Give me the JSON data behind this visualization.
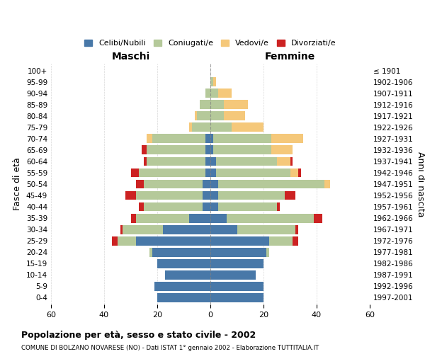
{
  "age_groups": [
    "100+",
    "95-99",
    "90-94",
    "85-89",
    "80-84",
    "75-79",
    "70-74",
    "65-69",
    "60-64",
    "55-59",
    "50-54",
    "45-49",
    "40-44",
    "35-39",
    "30-34",
    "25-29",
    "20-24",
    "15-19",
    "10-14",
    "5-9",
    "0-4"
  ],
  "birth_years": [
    "≤ 1901",
    "1902-1906",
    "1907-1911",
    "1912-1916",
    "1917-1921",
    "1922-1926",
    "1927-1931",
    "1932-1936",
    "1937-1941",
    "1942-1946",
    "1947-1951",
    "1952-1956",
    "1957-1961",
    "1962-1966",
    "1967-1971",
    "1972-1976",
    "1977-1981",
    "1982-1986",
    "1987-1991",
    "1992-1996",
    "1997-2001"
  ],
  "maschi": {
    "celibi": [
      0,
      0,
      0,
      0,
      0,
      0,
      2,
      2,
      2,
      2,
      3,
      3,
      3,
      8,
      18,
      28,
      22,
      20,
      17,
      21,
      20
    ],
    "coniugati": [
      0,
      0,
      2,
      4,
      5,
      7,
      20,
      22,
      22,
      25,
      22,
      25,
      22,
      20,
      15,
      7,
      1,
      0,
      0,
      0,
      0
    ],
    "vedovi": [
      0,
      0,
      0,
      0,
      1,
      1,
      2,
      0,
      0,
      0,
      0,
      0,
      0,
      0,
      0,
      0,
      0,
      0,
      0,
      0,
      0
    ],
    "divorziati": [
      0,
      0,
      0,
      0,
      0,
      0,
      0,
      2,
      1,
      3,
      3,
      4,
      2,
      2,
      1,
      2,
      0,
      0,
      0,
      0,
      0
    ]
  },
  "femmine": {
    "nubili": [
      0,
      0,
      0,
      0,
      0,
      0,
      1,
      1,
      2,
      2,
      3,
      3,
      3,
      6,
      10,
      22,
      21,
      20,
      17,
      20,
      20
    ],
    "coniugate": [
      0,
      1,
      3,
      5,
      5,
      8,
      22,
      22,
      23,
      28,
      40,
      25,
      22,
      33,
      22,
      9,
      1,
      0,
      0,
      0,
      0
    ],
    "vedove": [
      0,
      1,
      5,
      9,
      8,
      12,
      12,
      8,
      5,
      3,
      2,
      0,
      0,
      0,
      0,
      0,
      0,
      0,
      0,
      0,
      0
    ],
    "divorziate": [
      0,
      0,
      0,
      0,
      0,
      0,
      0,
      0,
      1,
      1,
      0,
      4,
      1,
      3,
      1,
      2,
      0,
      0,
      0,
      0,
      0
    ]
  },
  "colors": {
    "celibi": "#4878a8",
    "coniugati": "#b5c99a",
    "vedovi": "#f5c87a",
    "divorziati": "#cc2222"
  },
  "xlim": 60,
  "title": "Popolazione per età, sesso e stato civile - 2002",
  "subtitle": "COMUNE DI BOLZANO NOVARESE (NO) - Dati ISTAT 1° gennaio 2002 - Elaborazione TUTTITALIA.IT",
  "ylabel_left": "Fasce di età",
  "ylabel_right": "Anni di nascita",
  "legend_labels": [
    "Celibi/Nubili",
    "Coniugati/e",
    "Vedovi/e",
    "Divorziati/e"
  ]
}
